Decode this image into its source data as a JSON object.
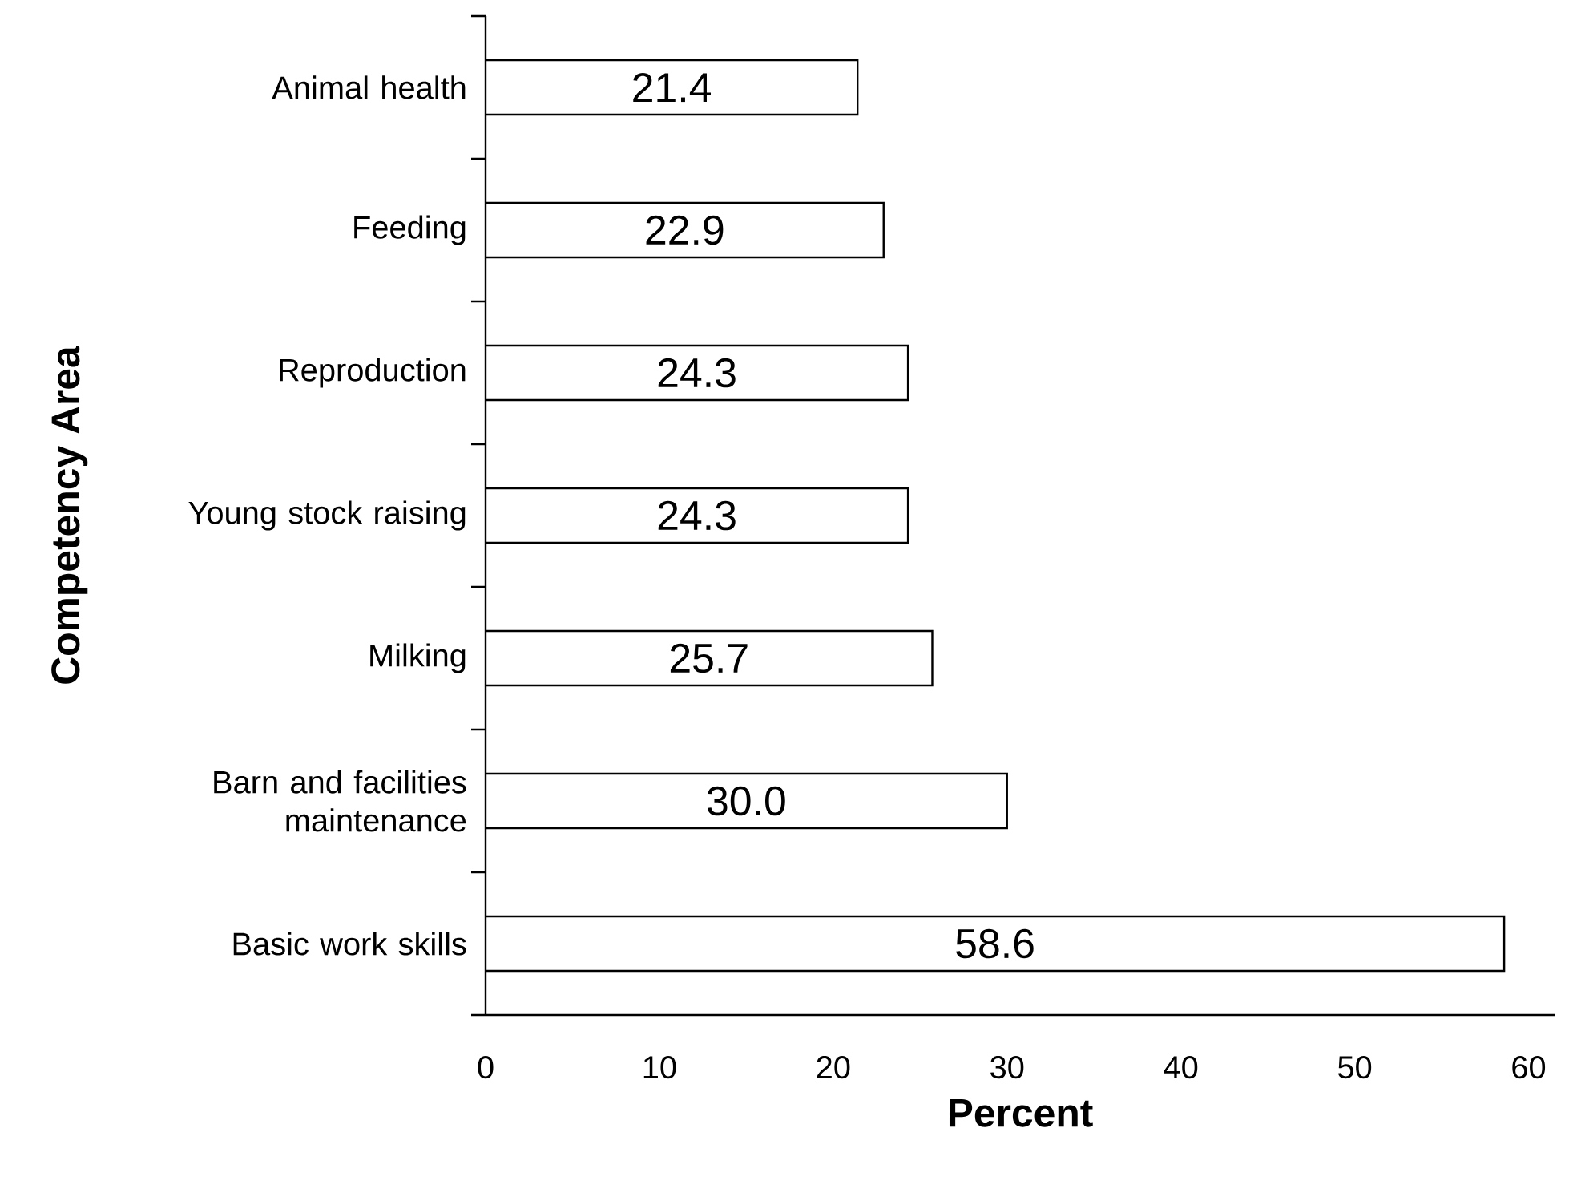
{
  "chart_data": {
    "type": "bar",
    "orientation": "horizontal",
    "xlabel": "Percent",
    "ylabel": "Competency Area",
    "categories": [
      "Animal health",
      "Feeding",
      "Reproduction",
      "Young stock raising",
      "Milking",
      "Barn and facilities maintenance",
      "Basic work skills"
    ],
    "values": [
      21.4,
      22.9,
      24.3,
      24.3,
      25.7,
      30.0,
      58.6
    ],
    "value_labels": [
      "21.4",
      "22.9",
      "24.3",
      "24.3",
      "25.7",
      "30.0",
      "58.6"
    ],
    "color": "#ffffff",
    "xlim": [
      0,
      61.5
    ],
    "xticks": [
      0,
      10,
      20,
      30,
      40,
      50,
      60
    ],
    "grid": false
  }
}
